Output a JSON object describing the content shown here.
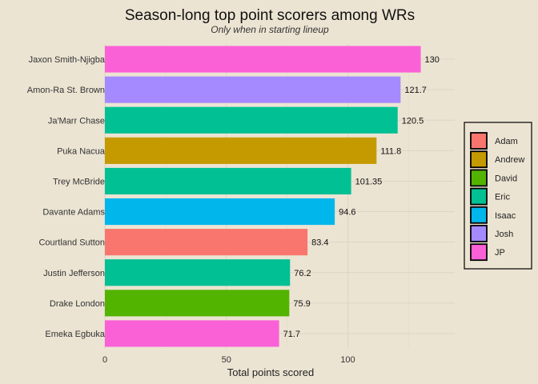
{
  "chart_data": {
    "type": "bar",
    "orientation": "horizontal",
    "title": "Season-long top point scorers among WRs",
    "subtitle": "Only when in starting lineup",
    "xlabel": "Total points scored",
    "ylabel": "",
    "xlim": [
      0,
      135
    ],
    "x_ticks": [
      0,
      50,
      100
    ],
    "grid": true,
    "legend_position": "right",
    "categories": [
      "Jaxon Smith-Njigba",
      "Amon-Ra St. Brown",
      "Ja'Marr Chase",
      "Puka Nacua",
      "Trey McBride",
      "Davante Adams",
      "Courtland Sutton",
      "Justin Jefferson",
      "Drake London",
      "Emeka Egbuka"
    ],
    "values": [
      130,
      121.7,
      120.5,
      111.8,
      101.35,
      94.6,
      83.4,
      76.2,
      75.9,
      71.7
    ],
    "value_labels": [
      "130",
      "121.7",
      "120.5",
      "111.8",
      "101.35",
      "94.6",
      "83.4",
      "76.2",
      "75.9",
      "71.7"
    ],
    "groups": [
      "JP",
      "Josh",
      "Eric",
      "Andrew",
      "Eric",
      "Isaac",
      "Adam",
      "Eric",
      "David",
      "JP"
    ],
    "legend": [
      {
        "name": "Adam",
        "color": "#f8766d"
      },
      {
        "name": "Andrew",
        "color": "#c49a00"
      },
      {
        "name": "David",
        "color": "#53b400"
      },
      {
        "name": "Eric",
        "color": "#00c094"
      },
      {
        "name": "Isaac",
        "color": "#00b6eb"
      },
      {
        "name": "Josh",
        "color": "#a58aff"
      },
      {
        "name": "JP",
        "color": "#fb61d7"
      }
    ]
  }
}
